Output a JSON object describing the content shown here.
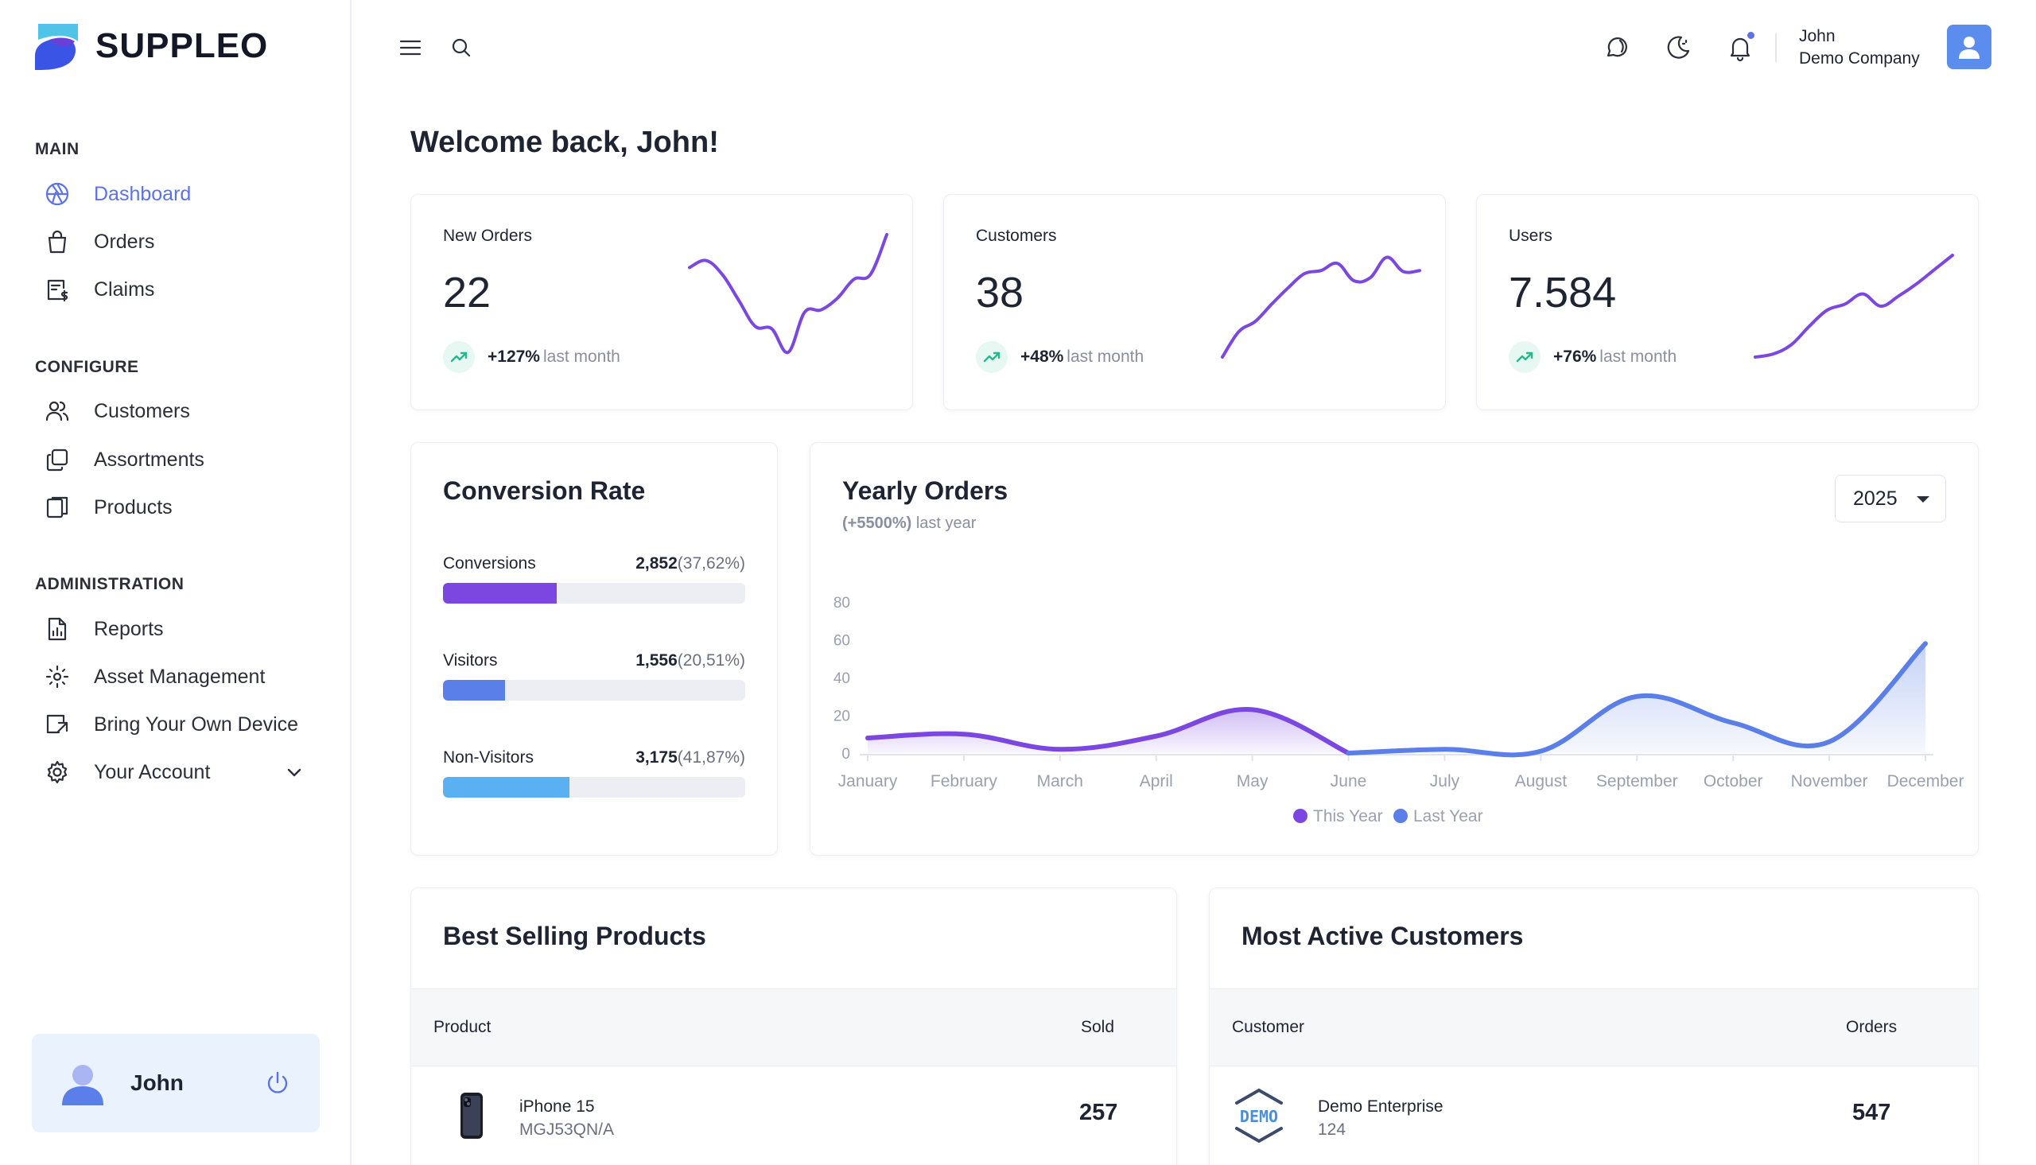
{
  "brand": {
    "name": "SUPPLEO"
  },
  "sidebar": {
    "sections": {
      "main": "MAIN",
      "configure": "CONFIGURE",
      "administration": "ADMINISTRATION"
    },
    "items": {
      "dashboard": "Dashboard",
      "orders": "Orders",
      "claims": "Claims",
      "customers": "Customers",
      "assortments": "Assortments",
      "products": "Products",
      "reports": "Reports",
      "asset_management": "Asset Management",
      "byod": "Bring Your Own Device",
      "your_account": "Your Account"
    },
    "user": {
      "name": "John"
    }
  },
  "topbar": {
    "user_name": "John",
    "company": "Demo Company"
  },
  "welcome": "Welcome back, John!",
  "stats": [
    {
      "title": "New Orders",
      "value": "22",
      "change": "+127%",
      "period": "last month",
      "trend": [
        0.72,
        0.78,
        0.66,
        0.44,
        0.22,
        0.2,
        0.0,
        0.34,
        0.36,
        0.46,
        0.62,
        0.66,
        1.0
      ]
    },
    {
      "title": "Customers",
      "value": "38",
      "change": "+48%",
      "period": "last month",
      "trend": [
        0.0,
        0.25,
        0.35,
        0.52,
        0.68,
        0.82,
        0.85,
        0.92,
        0.75,
        0.78,
        0.98,
        0.84,
        0.85
      ]
    },
    {
      "title": "Users",
      "value": "7.584",
      "change": "+76%",
      "period": "last month",
      "trend": [
        0.0,
        0.03,
        0.12,
        0.3,
        0.46,
        0.52,
        0.62,
        0.5,
        0.6,
        0.72,
        0.86,
        1.0
      ]
    }
  ],
  "conversion": {
    "title": "Conversion Rate",
    "rows": [
      {
        "label": "Conversions",
        "value": "2,852",
        "pct_text": "(37,62%)",
        "pct": 37.62,
        "color": "#7b47e0"
      },
      {
        "label": "Visitors",
        "value": "1,556",
        "pct_text": "(20,51%)",
        "pct": 20.51,
        "color": "#5b7fe8"
      },
      {
        "label": "Non-Visitors",
        "value": "3,175",
        "pct_text": "(41,87%)",
        "pct": 41.87,
        "color": "#5ab0f0"
      }
    ]
  },
  "yearly": {
    "title": "Yearly Orders",
    "change": "(+5500%)",
    "period": "last year",
    "year": "2025"
  },
  "chart_data": {
    "type": "area",
    "categories": [
      "January",
      "February",
      "March",
      "April",
      "May",
      "June",
      "July",
      "August",
      "September",
      "October",
      "November",
      "December"
    ],
    "ylim": [
      0,
      80
    ],
    "yticks": [
      0,
      20,
      40,
      60,
      80
    ],
    "legend_position": "bottom",
    "series": [
      {
        "name": "This Year",
        "color": "#7b47e0",
        "values": [
          8,
          10,
          2,
          9,
          23,
          0,
          null,
          null,
          null,
          null,
          null,
          null
        ]
      },
      {
        "name": "Last Year",
        "color": "#5b7fe8",
        "values": [
          null,
          null,
          null,
          null,
          null,
          0,
          2,
          1,
          30,
          16,
          6,
          58
        ]
      }
    ]
  },
  "best_selling": {
    "title": "Best Selling Products",
    "col_product": "Product",
    "col_sold": "Sold",
    "rows": [
      {
        "name": "iPhone 15",
        "sku": "MGJ53QN/A",
        "sold": "257"
      }
    ]
  },
  "active_customers": {
    "title": "Most Active Customers",
    "col_customer": "Customer",
    "col_orders": "Orders",
    "rows": [
      {
        "name": "Demo Enterprise",
        "id": "124",
        "orders": "547",
        "logo_text": "DEMO"
      }
    ]
  }
}
